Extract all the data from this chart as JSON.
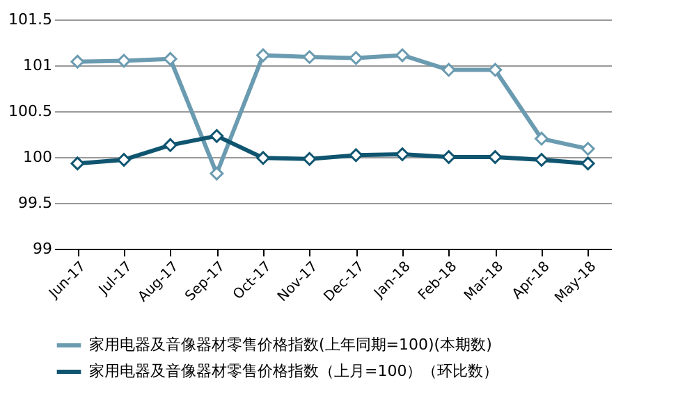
{
  "chart_data": {
    "type": "line",
    "categories": [
      "Jun-17",
      "Jul-17",
      "Aug-17",
      "Sep-17",
      "Oct-17",
      "Nov-17",
      "Dec-17",
      "Jan-18",
      "Feb-18",
      "Mar-18",
      "Apr-18",
      "May-18"
    ],
    "series": [
      {
        "name": "家用电器及音像器材零售价格指数(上年同期=100)(本期数)",
        "color": "#6a9bb0",
        "values": [
          101.04,
          101.05,
          101.07,
          99.82,
          101.11,
          101.09,
          101.08,
          101.11,
          100.95,
          100.95,
          100.2,
          100.09
        ]
      },
      {
        "name": "家用电器及音像器材零售价格指数（上月=100）（环比数）",
        "color": "#0f5570",
        "values": [
          99.93,
          99.97,
          100.13,
          100.23,
          99.99,
          99.98,
          100.02,
          100.03,
          100,
          100,
          99.97,
          99.93
        ]
      }
    ],
    "ylim": [
      99,
      101.5
    ],
    "yticks": [
      99,
      99.5,
      100,
      100.5,
      101,
      101.5
    ],
    "grid": "y",
    "legend": "bottom",
    "marker": "diamond",
    "line_style": "solid"
  }
}
